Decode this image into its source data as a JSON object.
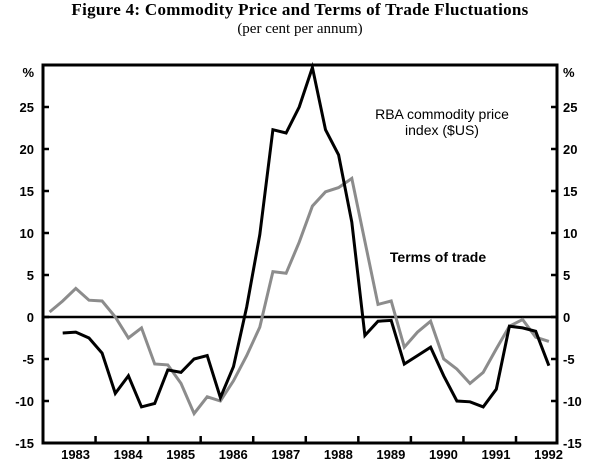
{
  "chart_data": {
    "type": "line",
    "title": "Figure 4: Commodity Price and Terms of Trade Fluctuations",
    "subtitle": "(per cent per annum)",
    "ylabel_left": "%",
    "ylabel_right": "%",
    "ylim": [
      -15,
      30
    ],
    "yticks": [
      -15,
      -10,
      -5,
      0,
      5,
      10,
      15,
      20,
      25
    ],
    "xlim": [
      1982.5,
      1992.28
    ],
    "xticks": [
      1983.5,
      1984.5,
      1985.5,
      1986.5,
      1987.5,
      1988.5,
      1989.5,
      1990.5,
      1991.5,
      1992.5
    ],
    "xtick_labels": [
      "1983",
      "1984",
      "1985",
      "1986",
      "1987",
      "1988",
      "1989",
      "1990",
      "1991",
      "1992"
    ],
    "grid": false,
    "x": [
      1982.625,
      1982.875,
      1983.125,
      1983.375,
      1983.625,
      1983.875,
      1984.125,
      1984.375,
      1984.625,
      1984.875,
      1985.125,
      1985.375,
      1985.625,
      1985.875,
      1986.125,
      1986.375,
      1986.625,
      1986.875,
      1987.125,
      1987.375,
      1987.625,
      1987.875,
      1988.125,
      1988.375,
      1988.625,
      1988.875,
      1989.125,
      1989.375,
      1989.625,
      1989.875,
      1990.125,
      1990.375,
      1990.625,
      1990.875,
      1991.125,
      1991.375,
      1991.625,
      1991.875,
      1992.125
    ],
    "series": [
      {
        "name": "RBA commodity price index ($US)",
        "label_lines": [
          "RBA commodity price",
          "index ($US)"
        ],
        "color": "#000000",
        "values": [
          null,
          -1.9,
          -1.8,
          -2.5,
          -4.3,
          -9.1,
          -7.0,
          -10.7,
          -10.3,
          -6.3,
          -6.6,
          -5.0,
          -4.6,
          -9.6,
          -5.9,
          1.2,
          9.8,
          22.3,
          21.9,
          25.0,
          29.7,
          22.3,
          19.3,
          11.3,
          -2.2,
          -0.5,
          -0.4,
          -5.6,
          -4.6,
          -3.6,
          -7.0,
          -10.0,
          -10.1,
          -10.7,
          -8.6,
          -1.1,
          -1.3,
          -1.7,
          -5.8
        ]
      },
      {
        "name": "Terms of trade",
        "label_lines": [
          "Terms of trade"
        ],
        "color": "#8c8c8c",
        "values": [
          0.6,
          1.9,
          3.4,
          2.0,
          1.9,
          0.0,
          -2.5,
          -1.3,
          -5.6,
          -5.7,
          -7.9,
          -11.5,
          -9.5,
          -10.0,
          -7.6,
          -4.6,
          -1.2,
          5.4,
          5.2,
          8.9,
          13.2,
          14.9,
          15.4,
          16.5,
          9.0,
          1.5,
          1.9,
          -3.6,
          -1.8,
          -0.5,
          -5.0,
          -6.2,
          -7.9,
          -6.6,
          -3.8,
          -1.1,
          -0.3,
          -2.4,
          -2.9
        ]
      }
    ]
  }
}
